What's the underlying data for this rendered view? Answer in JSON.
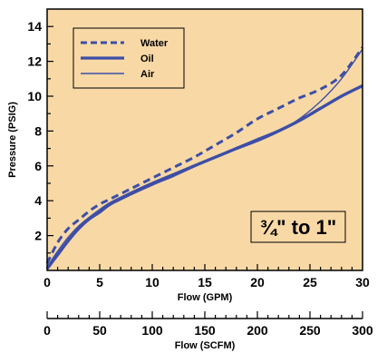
{
  "chart_data": {
    "type": "line",
    "xlabel": "Flow (GPM)",
    "ylabel": "Pressure (PSIG)",
    "xlim": [
      0,
      30
    ],
    "ylim": [
      0,
      15
    ],
    "x_ticks": [
      "0",
      "5",
      "10",
      "15",
      "20",
      "25",
      "30"
    ],
    "y_ticks": [
      "2",
      "4",
      "6",
      "8",
      "10",
      "12",
      "14"
    ],
    "secondary_axis": {
      "label": "Flow (SCFM)",
      "range": [
        0,
        300
      ],
      "ticks": [
        "0",
        "50",
        "100",
        "150",
        "200",
        "250",
        "300"
      ]
    },
    "size_label": "¾\" to 1\"",
    "legend_position": "top-left",
    "colors": {
      "plot_bg": "#f8d9a6",
      "series": "#3d4ea6"
    },
    "series": [
      {
        "name": "Water",
        "style": "dashed",
        "x": [
          0,
          1,
          2,
          3,
          4,
          5,
          6,
          8,
          10,
          12,
          14,
          16,
          18,
          20,
          22,
          24,
          26,
          28,
          30
        ],
        "y": [
          0.4,
          1.6,
          2.4,
          2.9,
          3.4,
          3.8,
          4.1,
          4.7,
          5.3,
          5.9,
          6.5,
          7.2,
          7.9,
          8.7,
          9.3,
          9.9,
          10.4,
          11.2,
          12.8
        ]
      },
      {
        "name": "Oil",
        "style": "thick",
        "x": [
          0,
          1,
          2,
          3,
          4,
          5,
          6,
          8,
          10,
          12,
          14,
          16,
          18,
          20,
          22,
          24,
          26,
          28,
          30
        ],
        "y": [
          0.1,
          0.9,
          1.7,
          2.4,
          2.95,
          3.35,
          3.8,
          4.4,
          4.95,
          5.45,
          6.0,
          6.5,
          7.0,
          7.5,
          8.0,
          8.6,
          9.3,
          10.0,
          10.6
        ]
      },
      {
        "name": "Air",
        "style": "thin",
        "x": [
          0,
          1,
          2,
          3,
          4,
          5,
          6,
          8,
          10,
          12,
          14,
          16,
          18,
          20,
          22,
          24,
          26,
          28,
          30
        ],
        "y": [
          0.2,
          1.1,
          1.9,
          2.55,
          3.05,
          3.5,
          3.9,
          4.5,
          5.05,
          5.55,
          6.05,
          6.5,
          6.95,
          7.4,
          7.95,
          8.7,
          9.7,
          11.0,
          12.7
        ]
      }
    ]
  }
}
